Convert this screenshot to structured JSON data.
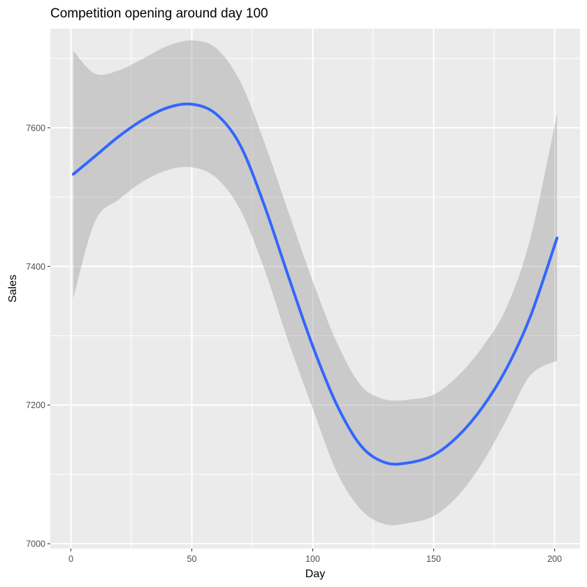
{
  "chart_data": {
    "type": "line",
    "title": "Competition opening around day 100",
    "xlabel": "Day",
    "ylabel": "Sales",
    "xlim": [
      -8.5,
      210.5
    ],
    "ylim": [
      6993,
      7743
    ],
    "x_ticks": [
      0,
      50,
      100,
      150,
      200
    ],
    "x_tick_labels": [
      "0",
      "50",
      "100",
      "150",
      "200"
    ],
    "y_ticks": [
      7000,
      7200,
      7400,
      7600
    ],
    "y_tick_labels": [
      "7000",
      "7200",
      "7400",
      "7600"
    ],
    "grid": true,
    "legend": "none",
    "colors": {
      "line": "#3366FF",
      "band": "#999999",
      "panel": "#EBEBEB",
      "grid": "#FFFFFF"
    },
    "series": [
      {
        "x": [
          1,
          10,
          20,
          30,
          40,
          50,
          60,
          70,
          80,
          90,
          100,
          110,
          120,
          130,
          140,
          150,
          160,
          170,
          180,
          190,
          201
        ],
        "y": [
          7533,
          7559,
          7588,
          7612,
          7629,
          7634,
          7620,
          7575,
          7488,
          7385,
          7285,
          7200,
          7141,
          7117,
          7117,
          7128,
          7155,
          7196,
          7252,
          7328,
          7441
        ],
        "lower": [
          7354,
          7465,
          7497,
          7523,
          7539,
          7543,
          7528,
          7482,
          7396,
          7291,
          7195,
          7103,
          7049,
          7028,
          7030,
          7040,
          7069,
          7116,
          7178,
          7243,
          7264
        ],
        "upper": [
          7711,
          7678,
          7683,
          7700,
          7718,
          7726,
          7715,
          7667,
          7579,
          7478,
          7379,
          7290,
          7228,
          7208,
          7208,
          7215,
          7242,
          7283,
          7340,
          7441,
          7620
        ]
      }
    ]
  }
}
